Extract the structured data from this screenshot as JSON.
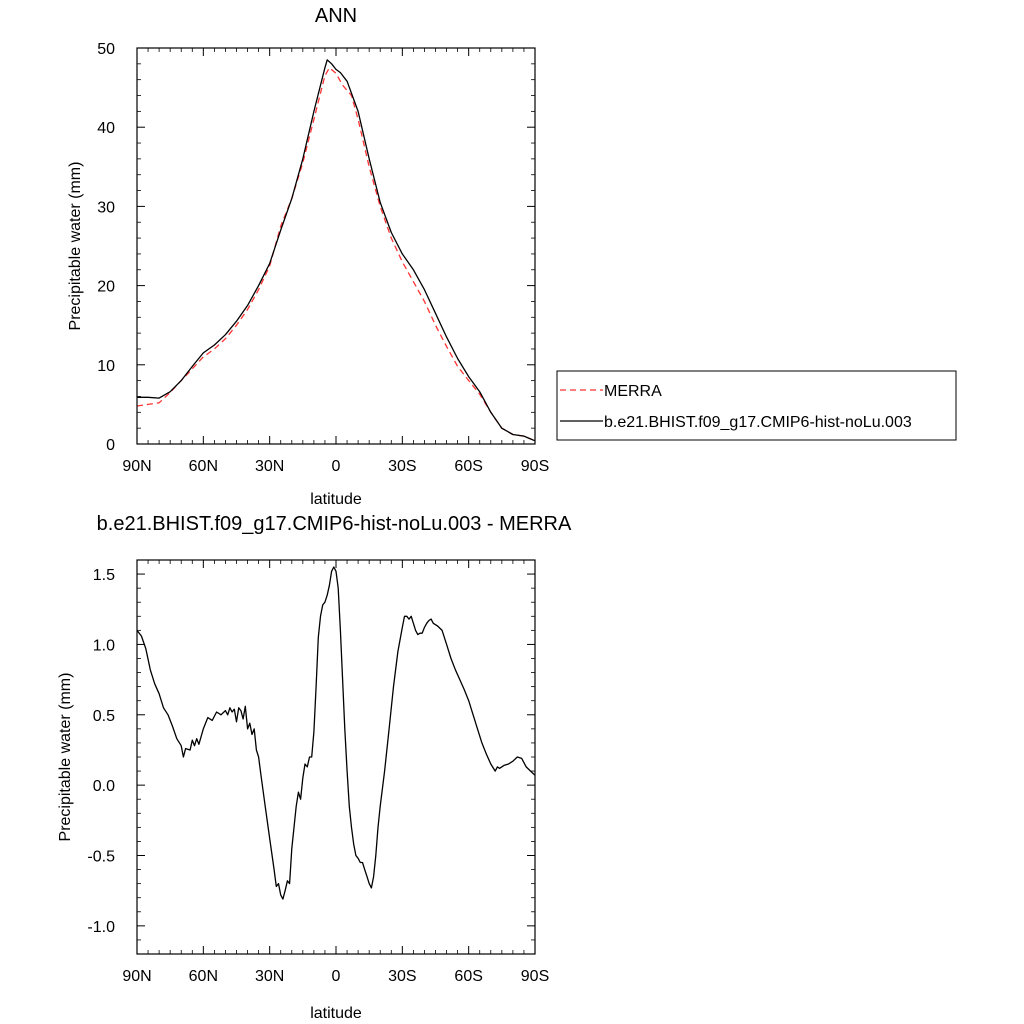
{
  "chart_data": [
    {
      "type": "line",
      "title": "ANN",
      "xlabel": "latitude",
      "ylabel": "Precipitable water (mm)",
      "xlim": [
        90,
        -90
      ],
      "ylim": [
        0,
        50
      ],
      "x_ticks": [
        {
          "value": 90,
          "label": "90N"
        },
        {
          "value": 60,
          "label": "60N"
        },
        {
          "value": 30,
          "label": "30N"
        },
        {
          "value": 0,
          "label": "0"
        },
        {
          "value": -30,
          "label": "30S"
        },
        {
          "value": -60,
          "label": "60S"
        },
        {
          "value": -90,
          "label": "90S"
        }
      ],
      "y_ticks": [
        {
          "value": 0,
          "label": "0"
        },
        {
          "value": 10,
          "label": "10"
        },
        {
          "value": 20,
          "label": "20"
        },
        {
          "value": 30,
          "label": "30"
        },
        {
          "value": 40,
          "label": "40"
        },
        {
          "value": 50,
          "label": "50"
        }
      ],
      "grid": false,
      "legend_position": "right",
      "series": [
        {
          "name": "MERRA",
          "color": "#ff3333",
          "dash": "dashed",
          "points": [
            [
              90,
              4.8
            ],
            [
              85,
              5.0
            ],
            [
              80,
              5.2
            ],
            [
              75,
              6.5
            ],
            [
              70,
              8.0
            ],
            [
              65,
              9.5
            ],
            [
              60,
              11.0
            ],
            [
              55,
              12.0
            ],
            [
              50,
              13.3
            ],
            [
              45,
              15.0
            ],
            [
              40,
              17.0
            ],
            [
              35,
              19.5
            ],
            [
              30,
              22.5
            ],
            [
              25,
              27.5
            ],
            [
              20,
              31.0
            ],
            [
              15,
              35.5
            ],
            [
              10,
              41.0
            ],
            [
              5,
              46.5
            ],
            [
              3,
              47.5
            ],
            [
              0,
              46.8
            ],
            [
              -3,
              45.3
            ],
            [
              -7,
              44.0
            ],
            [
              -10,
              41.0
            ],
            [
              -15,
              35.0
            ],
            [
              -20,
              30.0
            ],
            [
              -25,
              26.0
            ],
            [
              -30,
              23.0
            ],
            [
              -35,
              20.5
            ],
            [
              -40,
              18.0
            ],
            [
              -45,
              15.0
            ],
            [
              -50,
              12.3
            ],
            [
              -55,
              9.8
            ],
            [
              -60,
              8.0
            ],
            [
              -65,
              6.3
            ],
            [
              -70,
              4.0
            ],
            [
              -75,
              2.0
            ],
            [
              -80,
              1.2
            ],
            [
              -85,
              1.0
            ],
            [
              -90,
              0.4
            ]
          ]
        },
        {
          "name": "b.e21.BHIST.f09_g17.CMIP6-hist-noLu.003",
          "color": "#000000",
          "dash": "solid",
          "points": [
            [
              90,
              5.9
            ],
            [
              85,
              5.9
            ],
            [
              80,
              5.8
            ],
            [
              75,
              6.6
            ],
            [
              70,
              8.0
            ],
            [
              65,
              9.8
            ],
            [
              60,
              11.5
            ],
            [
              55,
              12.5
            ],
            [
              50,
              13.8
            ],
            [
              45,
              15.5
            ],
            [
              40,
              17.5
            ],
            [
              35,
              20.0
            ],
            [
              30,
              22.8
            ],
            [
              25,
              27.0
            ],
            [
              20,
              31.0
            ],
            [
              15,
              36.0
            ],
            [
              10,
              42.0
            ],
            [
              5,
              47.5
            ],
            [
              4,
              48.5
            ],
            [
              2,
              48.0
            ],
            [
              0,
              47.3
            ],
            [
              -2,
              46.9
            ],
            [
              -5,
              45.8
            ],
            [
              -10,
              42.0
            ],
            [
              -15,
              36.0
            ],
            [
              -20,
              30.5
            ],
            [
              -25,
              26.7
            ],
            [
              -30,
              24.0
            ],
            [
              -35,
              22.0
            ],
            [
              -40,
              19.5
            ],
            [
              -45,
              16.5
            ],
            [
              -50,
              13.5
            ],
            [
              -55,
              10.8
            ],
            [
              -60,
              8.5
            ],
            [
              -65,
              6.6
            ],
            [
              -70,
              4.0
            ],
            [
              -75,
              2.0
            ],
            [
              -80,
              1.2
            ],
            [
              -85,
              1.0
            ],
            [
              -90,
              0.4
            ]
          ]
        }
      ]
    },
    {
      "type": "line",
      "title": "b.e21.BHIST.f09_g17.CMIP6-hist-noLu.003 - MERRA",
      "xlabel": "latitude",
      "ylabel": "Precipitable water (mm)",
      "xlim": [
        90,
        -90
      ],
      "ylim": [
        -1.2,
        1.6
      ],
      "x_ticks": [
        {
          "value": 90,
          "label": "90N"
        },
        {
          "value": 60,
          "label": "60N"
        },
        {
          "value": 30,
          "label": "30N"
        },
        {
          "value": 0,
          "label": "0"
        },
        {
          "value": -30,
          "label": "30S"
        },
        {
          "value": -60,
          "label": "60S"
        },
        {
          "value": -90,
          "label": "90S"
        }
      ],
      "y_ticks": [
        {
          "value": -1.0,
          "label": "-1.0"
        },
        {
          "value": -0.5,
          "label": "-0.5"
        },
        {
          "value": 0.0,
          "label": "0.0"
        },
        {
          "value": 0.5,
          "label": "0.5"
        },
        {
          "value": 1.0,
          "label": "1.0"
        },
        {
          "value": 1.5,
          "label": "1.5"
        }
      ],
      "grid": false,
      "series": [
        {
          "color": "#000000",
          "dash": "solid",
          "points": [
            [
              90,
              1.1
            ],
            [
              88,
              1.06
            ],
            [
              86,
              0.97
            ],
            [
              84,
              0.82
            ],
            [
              82,
              0.72
            ],
            [
              80,
              0.65
            ],
            [
              78,
              0.55
            ],
            [
              76,
              0.5
            ],
            [
              74,
              0.42
            ],
            [
              72,
              0.33
            ],
            [
              70,
              0.28
            ],
            [
              69,
              0.2
            ],
            [
              68,
              0.26
            ],
            [
              66,
              0.25
            ],
            [
              65,
              0.32
            ],
            [
              64,
              0.28
            ],
            [
              63,
              0.33
            ],
            [
              62,
              0.29
            ],
            [
              60,
              0.4
            ],
            [
              58,
              0.48
            ],
            [
              56,
              0.46
            ],
            [
              54,
              0.52
            ],
            [
              52,
              0.5
            ],
            [
              50,
              0.53
            ],
            [
              49,
              0.5
            ],
            [
              48,
              0.55
            ],
            [
              47,
              0.52
            ],
            [
              46,
              0.54
            ],
            [
              45,
              0.45
            ],
            [
              44,
              0.55
            ],
            [
              43,
              0.53
            ],
            [
              42,
              0.47
            ],
            [
              41,
              0.56
            ],
            [
              40,
              0.4
            ],
            [
              39,
              0.44
            ],
            [
              38,
              0.36
            ],
            [
              37,
              0.4
            ],
            [
              36,
              0.25
            ],
            [
              35,
              0.2
            ],
            [
              34,
              0.08
            ],
            [
              32,
              -0.15
            ],
            [
              30,
              -0.38
            ],
            [
              28,
              -0.6
            ],
            [
              27,
              -0.72
            ],
            [
              26,
              -0.7
            ],
            [
              25,
              -0.78
            ],
            [
              24,
              -0.81
            ],
            [
              23,
              -0.75
            ],
            [
              22,
              -0.68
            ],
            [
              21,
              -0.7
            ],
            [
              20,
              -0.45
            ],
            [
              19,
              -0.3
            ],
            [
              18,
              -0.15
            ],
            [
              17,
              -0.05
            ],
            [
              16,
              -0.1
            ],
            [
              15,
              0.05
            ],
            [
              14,
              0.15
            ],
            [
              13,
              0.13
            ],
            [
              12,
              0.2
            ],
            [
              11,
              0.2
            ],
            [
              10,
              0.38
            ],
            [
              9,
              0.7
            ],
            [
              8,
              1.05
            ],
            [
              7,
              1.2
            ],
            [
              6,
              1.28
            ],
            [
              5,
              1.3
            ],
            [
              4,
              1.35
            ],
            [
              3,
              1.42
            ],
            [
              2,
              1.52
            ],
            [
              1,
              1.55
            ],
            [
              0,
              1.52
            ],
            [
              -1,
              1.4
            ],
            [
              -2,
              1.1
            ],
            [
              -3,
              0.75
            ],
            [
              -4,
              0.4
            ],
            [
              -5,
              0.1
            ],
            [
              -6,
              -0.15
            ],
            [
              -7,
              -0.3
            ],
            [
              -8,
              -0.42
            ],
            [
              -9,
              -0.5
            ],
            [
              -10,
              -0.52
            ],
            [
              -11,
              -0.55
            ],
            [
              -12,
              -0.55
            ],
            [
              -13,
              -0.6
            ],
            [
              -14,
              -0.65
            ],
            [
              -15,
              -0.7
            ],
            [
              -16,
              -0.73
            ],
            [
              -17,
              -0.65
            ],
            [
              -18,
              -0.5
            ],
            [
              -19,
              -0.3
            ],
            [
              -20,
              -0.15
            ],
            [
              -22,
              0.1
            ],
            [
              -24,
              0.4
            ],
            [
              -26,
              0.7
            ],
            [
              -28,
              0.95
            ],
            [
              -30,
              1.12
            ],
            [
              -31,
              1.2
            ],
            [
              -32,
              1.2
            ],
            [
              -33,
              1.18
            ],
            [
              -34,
              1.2
            ],
            [
              -35,
              1.15
            ],
            [
              -36,
              1.1
            ],
            [
              -37,
              1.07
            ],
            [
              -38,
              1.08
            ],
            [
              -39,
              1.08
            ],
            [
              -40,
              1.12
            ],
            [
              -41,
              1.15
            ],
            [
              -42,
              1.17
            ],
            [
              -43,
              1.18
            ],
            [
              -44,
              1.15
            ],
            [
              -46,
              1.13
            ],
            [
              -48,
              1.1
            ],
            [
              -50,
              1.0
            ],
            [
              -52,
              0.9
            ],
            [
              -54,
              0.82
            ],
            [
              -56,
              0.75
            ],
            [
              -58,
              0.68
            ],
            [
              -60,
              0.6
            ],
            [
              -62,
              0.5
            ],
            [
              -64,
              0.4
            ],
            [
              -66,
              0.3
            ],
            [
              -68,
              0.22
            ],
            [
              -70,
              0.15
            ],
            [
              -72,
              0.1
            ],
            [
              -73,
              0.13
            ],
            [
              -74,
              0.12
            ],
            [
              -76,
              0.14
            ],
            [
              -78,
              0.15
            ],
            [
              -80,
              0.17
            ],
            [
              -82,
              0.2
            ],
            [
              -84,
              0.19
            ],
            [
              -86,
              0.13
            ],
            [
              -88,
              0.1
            ],
            [
              -90,
              0.07
            ]
          ]
        }
      ]
    }
  ]
}
